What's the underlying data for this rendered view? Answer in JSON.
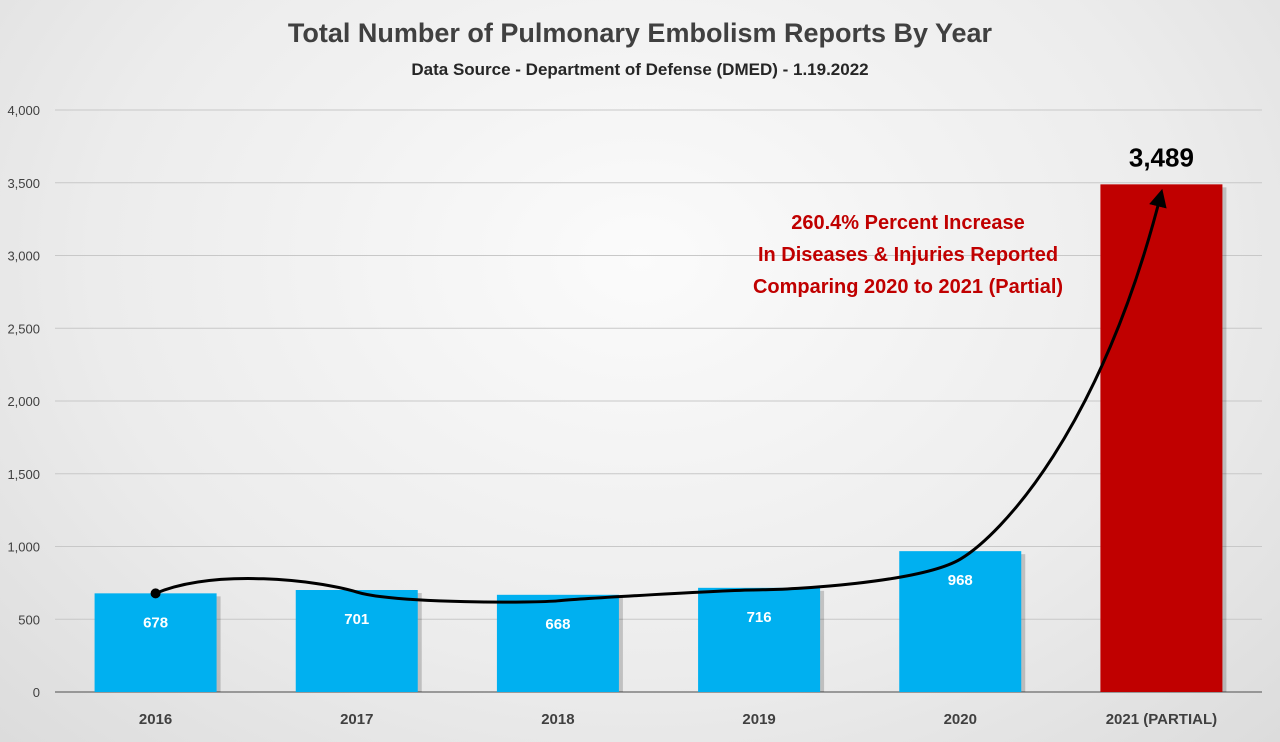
{
  "chart_data": {
    "type": "bar",
    "title": "Total Number of Pulmonary Embolism Reports By Year",
    "subtitle": "Data Source - Department of Defense (DMED) - 1.19.2022",
    "categories": [
      "2016",
      "2017",
      "2018",
      "2019",
      "2020",
      "2021 (PARTIAL)"
    ],
    "values": [
      678,
      701,
      668,
      716,
      968,
      3489
    ],
    "data_labels": [
      "678",
      "701",
      "668",
      "716",
      "968",
      "3,489"
    ],
    "bar_colors": [
      "#00b0f0",
      "#00b0f0",
      "#00b0f0",
      "#00b0f0",
      "#00b0f0",
      "#c00000"
    ],
    "ylim": [
      0,
      4000
    ],
    "yticks": [
      0,
      500,
      1000,
      1500,
      2000,
      2500,
      3000,
      3500,
      4000
    ],
    "ytick_labels": [
      "0",
      "500",
      "1,000",
      "1,500",
      "2,000",
      "2,500",
      "3,000",
      "3,500",
      "4,000"
    ],
    "grid": true,
    "legend": "none",
    "annotation": {
      "lines": [
        "260.4% Percent Increase",
        "In Diseases & Injuries Reported",
        "Comparing 2020 to 2021 (Partial)"
      ],
      "color": "#c00000"
    },
    "trend_arrow": {
      "from_category": "2016",
      "to_category": "2021 (PARTIAL)",
      "color": "#000000"
    }
  }
}
